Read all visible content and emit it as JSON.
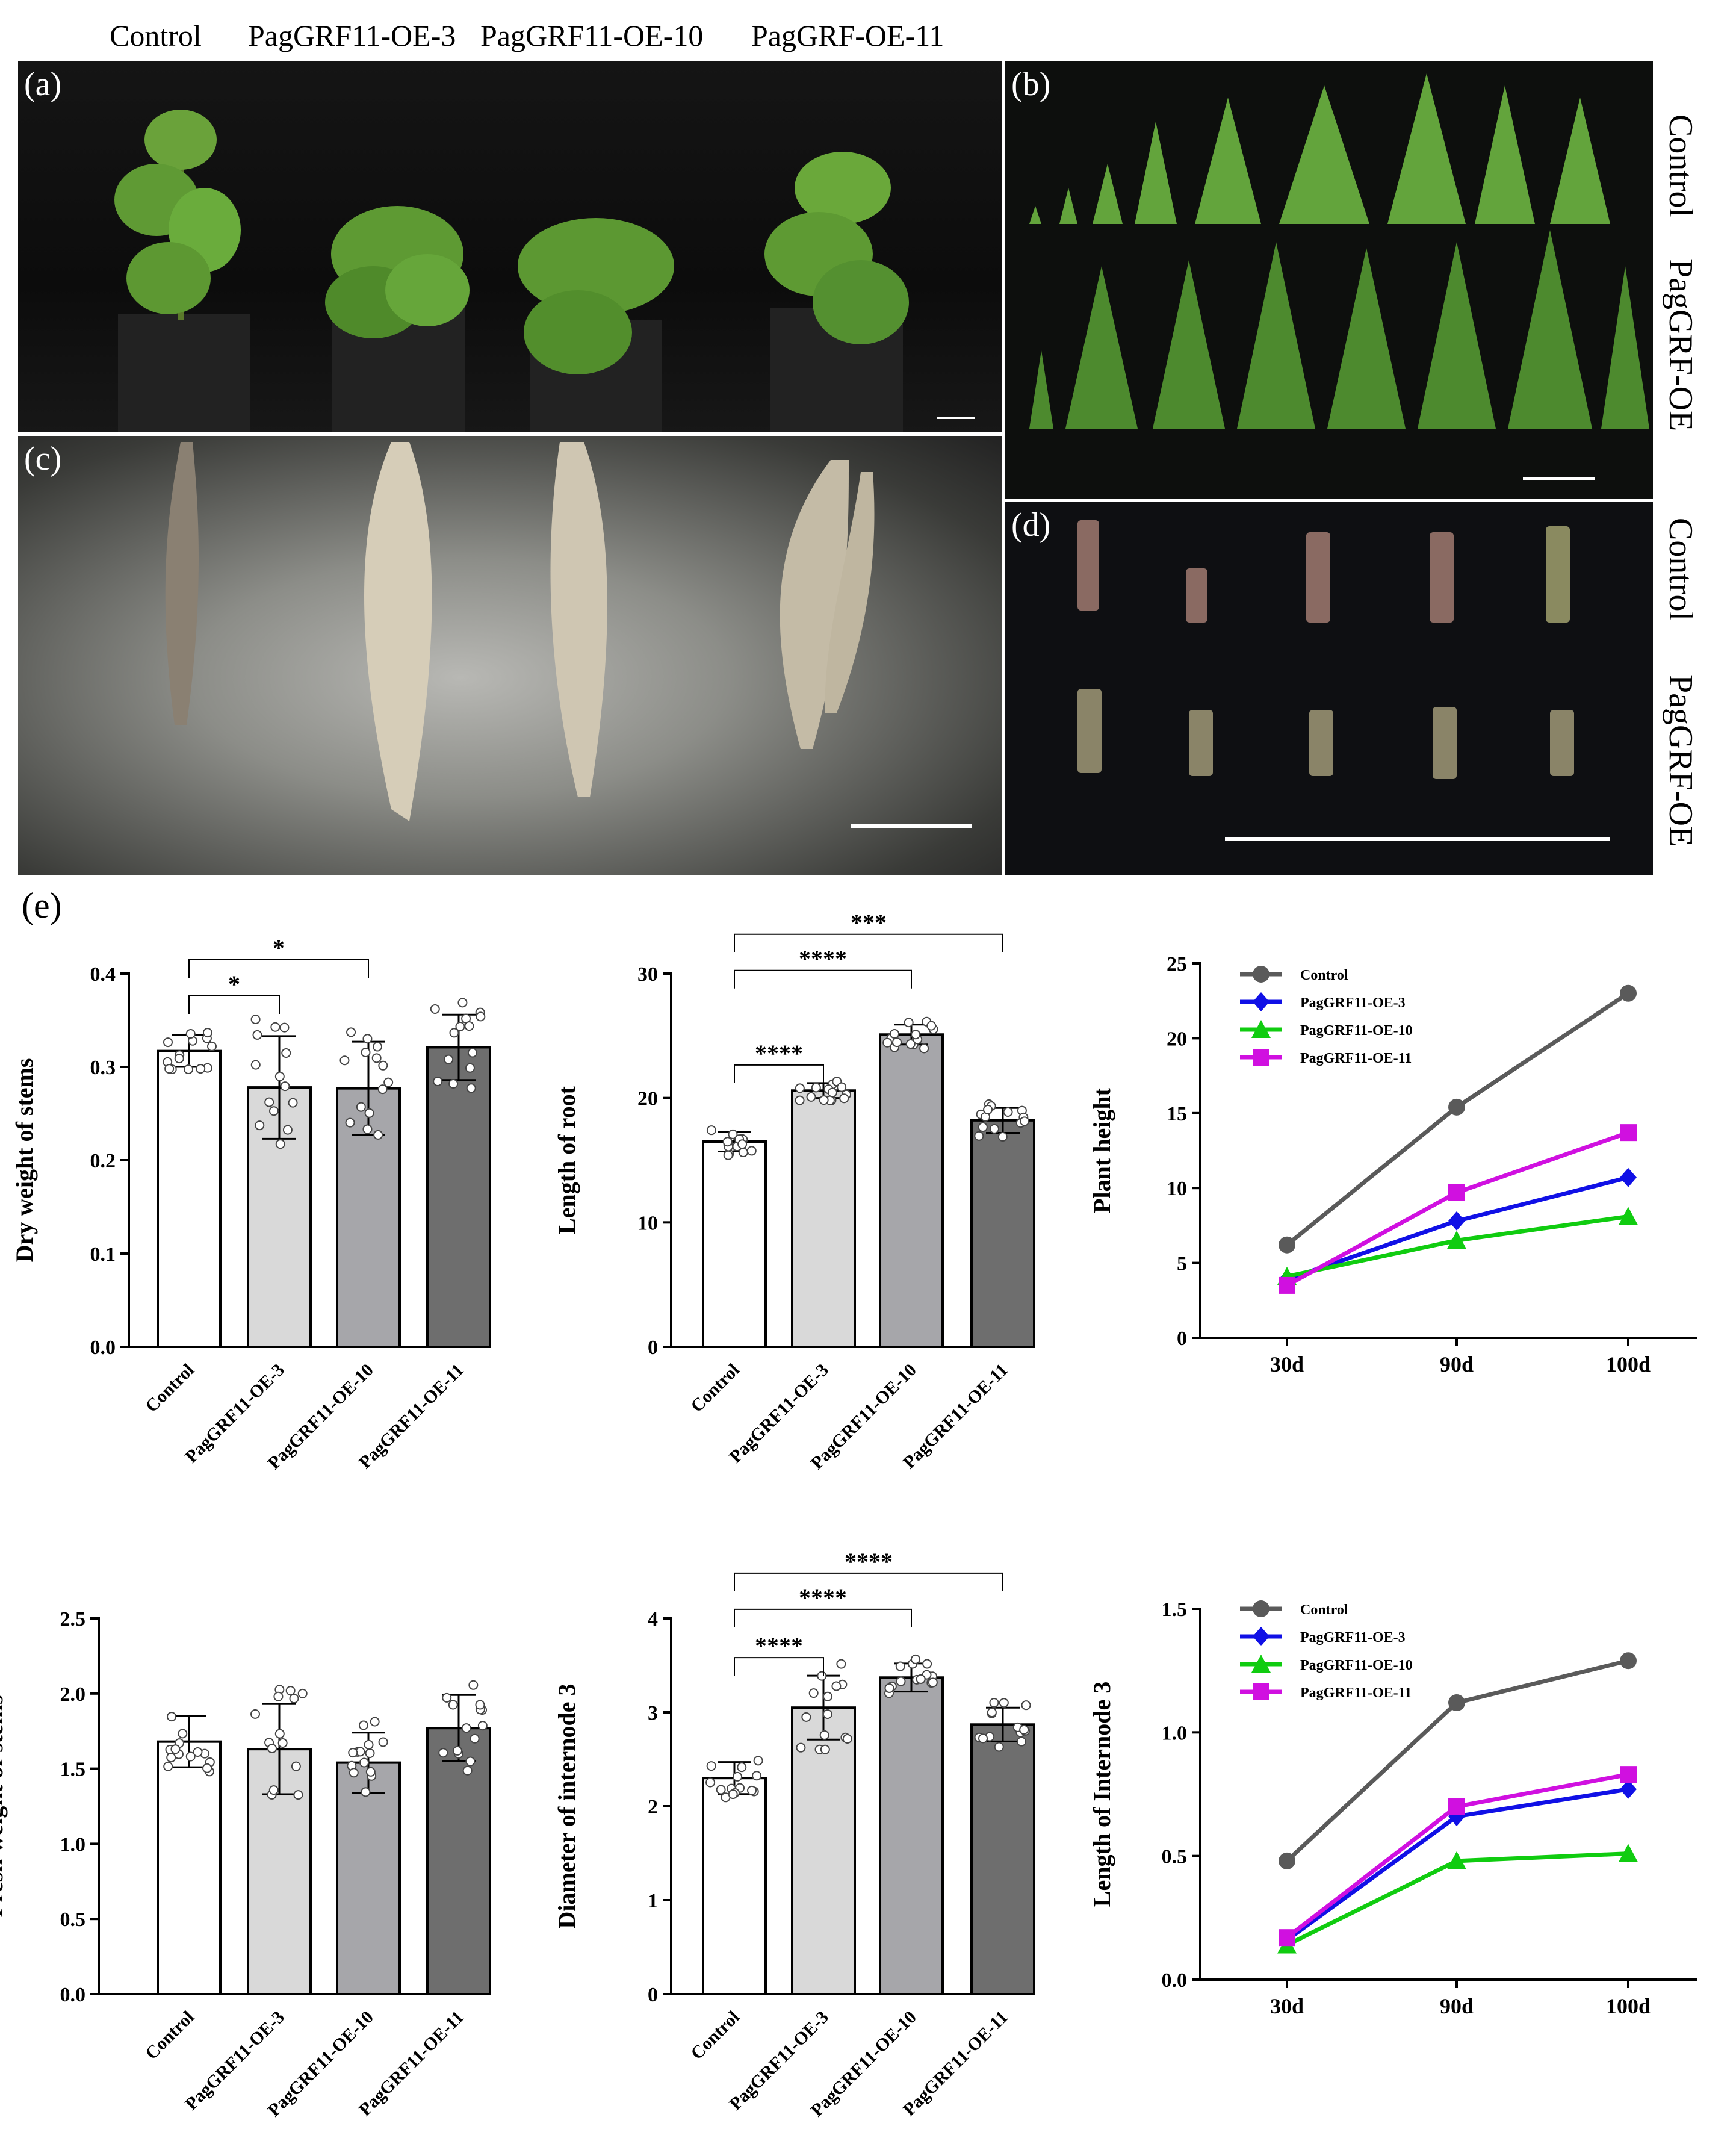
{
  "header": {
    "labels": [
      "Control",
      "PagGRF11-OE-3",
      "PagGRF11-OE-10",
      "PagGRF-OE-11"
    ]
  },
  "panels": {
    "a": "(a)",
    "b": "(b)",
    "c": "(c)",
    "d": "(d)",
    "e": "(e)"
  },
  "side_labels": {
    "b_top": "Control",
    "b_bottom": "PagGRF-OE",
    "d_top": "Control",
    "d_bottom": "PagGRF-OE"
  },
  "colors": {
    "control": "#5a5a5a",
    "oe3": "#1010e6",
    "oe10": "#10cc10",
    "oe11": "#d010e0",
    "bar_control": "#ffffff",
    "bar_oe3": "#d9d9d9",
    "bar_oe10": "#a6a6aa",
    "bar_oe11": "#6e6e6e"
  },
  "chart_data": [
    {
      "id": "dry",
      "type": "bar",
      "ylabel": "Dry weight of stems",
      "categories": [
        "Control",
        "PagGRF11-OE-3",
        "PagGRF11-OE-10",
        "PagGRF11-OE-11"
      ],
      "values": [
        0.317,
        0.278,
        0.277,
        0.321
      ],
      "errors": [
        0.017,
        0.055,
        0.05,
        0.035
      ],
      "ylim": [
        0,
        0.4
      ],
      "yticks": [
        "0.0",
        "0.1",
        "0.2",
        "0.3",
        "0.4"
      ],
      "significance": [
        {
          "from": 0,
          "to": 1,
          "label": "*"
        },
        {
          "from": 0,
          "to": 2,
          "label": "*"
        }
      ]
    },
    {
      "id": "root",
      "type": "bar",
      "ylabel": "Length of root",
      "categories": [
        "Control",
        "PagGRF11-OE-3",
        "PagGRF11-OE-10",
        "PagGRF11-OE-11"
      ],
      "values": [
        16.5,
        20.6,
        25.1,
        18.2
      ],
      "errors": [
        0.8,
        0.6,
        0.8,
        1.0
      ],
      "ylim": [
        0,
        30
      ],
      "yticks": [
        "0",
        "10",
        "20",
        "30"
      ],
      "significance": [
        {
          "from": 0,
          "to": 1,
          "label": "****"
        },
        {
          "from": 0,
          "to": 2,
          "label": "****"
        },
        {
          "from": 0,
          "to": 3,
          "label": "***"
        }
      ]
    },
    {
      "id": "height",
      "type": "line",
      "ylabel": "Plant height",
      "x": [
        "30d",
        "90d",
        "100d"
      ],
      "ylim": [
        0,
        25
      ],
      "yticks": [
        "0",
        "5",
        "10",
        "15",
        "20",
        "25"
      ],
      "legend_position": "top-left",
      "series": [
        {
          "name": "Control",
          "values": [
            6.2,
            15.4,
            23.0
          ],
          "marker": "circle"
        },
        {
          "name": "PagGRF11-OE-3",
          "values": [
            3.9,
            7.8,
            10.7
          ],
          "marker": "diamond"
        },
        {
          "name": "PagGRF11-OE-10",
          "values": [
            4.1,
            6.5,
            8.1
          ],
          "marker": "triangle"
        },
        {
          "name": "PagGRF11-OE-11",
          "values": [
            3.5,
            9.7,
            13.7
          ],
          "marker": "square"
        }
      ]
    },
    {
      "id": "fresh",
      "type": "bar",
      "ylabel": "Fresh weight of stems",
      "categories": [
        "Control",
        "PagGRF11-OE-3",
        "PagGRF11-OE-10",
        "PagGRF11-OE-11"
      ],
      "values": [
        1.68,
        1.63,
        1.54,
        1.77
      ],
      "errors": [
        0.17,
        0.3,
        0.2,
        0.22
      ],
      "ylim": [
        0,
        2.5
      ],
      "yticks": [
        "0.0",
        "0.5",
        "1.0",
        "1.5",
        "2.0",
        "2.5"
      ],
      "significance": []
    },
    {
      "id": "diam",
      "type": "bar",
      "ylabel": "Diameter of internode 3",
      "categories": [
        "Control",
        "PagGRF11-OE-3",
        "PagGRF11-OE-10",
        "PagGRF11-OE-11"
      ],
      "values": [
        2.3,
        3.05,
        3.37,
        2.87
      ],
      "errors": [
        0.17,
        0.34,
        0.15,
        0.18
      ],
      "ylim": [
        0,
        4
      ],
      "yticks": [
        "0",
        "1",
        "2",
        "3",
        "4"
      ],
      "significance": [
        {
          "from": 0,
          "to": 1,
          "label": "****"
        },
        {
          "from": 0,
          "to": 2,
          "label": "****"
        },
        {
          "from": 0,
          "to": 3,
          "label": "****"
        }
      ]
    },
    {
      "id": "internode",
      "type": "line",
      "ylabel": "Length of Internode 3",
      "x": [
        "30d",
        "90d",
        "100d"
      ],
      "ylim": [
        0,
        1.5
      ],
      "yticks": [
        "0.0",
        "0.5",
        "1.0",
        "1.5"
      ],
      "legend_position": "top-left",
      "series": [
        {
          "name": "Control",
          "values": [
            0.48,
            1.12,
            1.29
          ],
          "marker": "circle"
        },
        {
          "name": "PagGRF11-OE-3",
          "values": [
            0.16,
            0.66,
            0.77
          ],
          "marker": "diamond"
        },
        {
          "name": "PagGRF11-OE-10",
          "values": [
            0.14,
            0.48,
            0.51
          ],
          "marker": "triangle"
        },
        {
          "name": "PagGRF11-OE-11",
          "values": [
            0.17,
            0.7,
            0.83
          ],
          "marker": "square"
        }
      ]
    }
  ]
}
